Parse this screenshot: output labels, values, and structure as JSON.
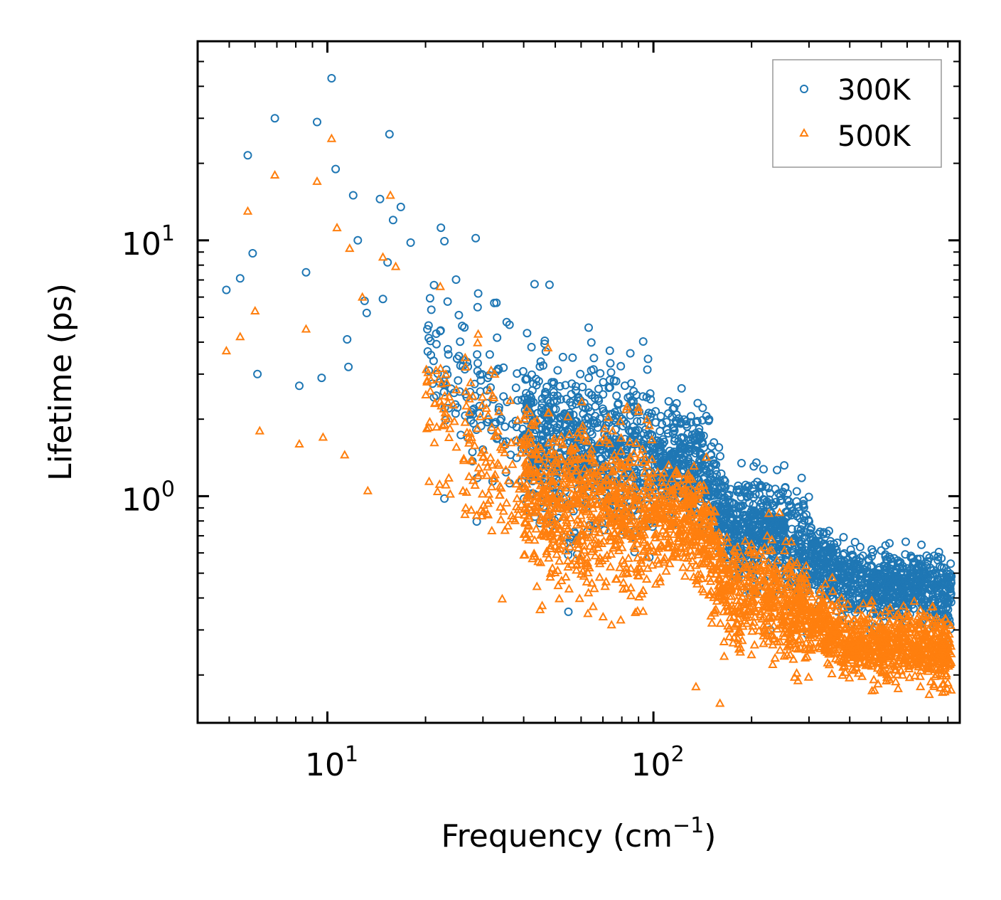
{
  "chart_data": {
    "type": "scatter",
    "title": "",
    "xlabel": "Frequency (cm",
    "xlabel_sup": "−1",
    "xlabel_suffix": ")",
    "ylabel": "Lifetime (ps)",
    "xscale": "log",
    "yscale": "log",
    "xlim": [
      4.0,
      870.0
    ],
    "ylim": [
      0.13,
      60.0
    ],
    "x_ticks": [
      {
        "value": 10,
        "base": "10",
        "exp": "1"
      },
      {
        "value": 100,
        "base": "10",
        "exp": "2"
      }
    ],
    "y_ticks": [
      {
        "value": 1,
        "base": "10",
        "exp": "0"
      },
      {
        "value": 10,
        "base": "10",
        "exp": "1"
      }
    ],
    "legend_position": "top-right",
    "series": [
      {
        "name": "300K",
        "marker": "circle",
        "color": "#1f77b4",
        "sample_points": [
          [
            4.9,
            6.4
          ],
          [
            5.7,
            21.5
          ],
          [
            5.4,
            7.1
          ],
          [
            5.9,
            8.9
          ],
          [
            6.1,
            3.0
          ],
          [
            6.9,
            30.0
          ],
          [
            8.2,
            2.7
          ],
          [
            8.6,
            7.5
          ],
          [
            9.3,
            29.0
          ],
          [
            9.6,
            2.9
          ],
          [
            10.3,
            43.0
          ],
          [
            10.6,
            19.0
          ],
          [
            11.5,
            4.1
          ],
          [
            11.6,
            3.2
          ],
          [
            12.0,
            15.0
          ],
          [
            12.4,
            10.0
          ],
          [
            13.0,
            5.8
          ],
          [
            13.2,
            5.2
          ],
          [
            14.5,
            14.5
          ],
          [
            14.8,
            5.9
          ],
          [
            15.3,
            8.2
          ],
          [
            15.5,
            26.0
          ],
          [
            15.9,
            12.0
          ],
          [
            16.8,
            13.5
          ],
          [
            18.0,
            9.8
          ],
          [
            22.3,
            11.2
          ],
          [
            28.5,
            10.2
          ],
          [
            48.0,
            6.7
          ],
          [
            29.0,
            6.2
          ],
          [
            33.0,
            5.7
          ]
        ]
      },
      {
        "name": "500K",
        "marker": "triangle",
        "color": "#ff7f0e",
        "sample_points": [
          [
            4.9,
            3.7
          ],
          [
            5.4,
            4.2
          ],
          [
            5.7,
            13.0
          ],
          [
            6.0,
            5.3
          ],
          [
            6.2,
            1.8
          ],
          [
            6.9,
            18.0
          ],
          [
            8.2,
            1.6
          ],
          [
            8.6,
            4.5
          ],
          [
            9.3,
            17.0
          ],
          [
            9.7,
            1.7
          ],
          [
            10.3,
            25.0
          ],
          [
            10.7,
            11.2
          ],
          [
            11.3,
            1.45
          ],
          [
            11.7,
            9.3
          ],
          [
            12.8,
            6.0
          ],
          [
            13.3,
            1.05
          ],
          [
            14.8,
            8.6
          ],
          [
            15.6,
            15.0
          ],
          [
            16.2,
            7.9
          ],
          [
            22.2,
            6.6
          ],
          [
            29.0,
            4.3
          ],
          [
            47.5,
            3.8
          ],
          [
            75.0,
            1.8
          ],
          [
            135.0,
            0.18
          ],
          [
            160.0,
            0.155
          ]
        ]
      }
    ]
  }
}
